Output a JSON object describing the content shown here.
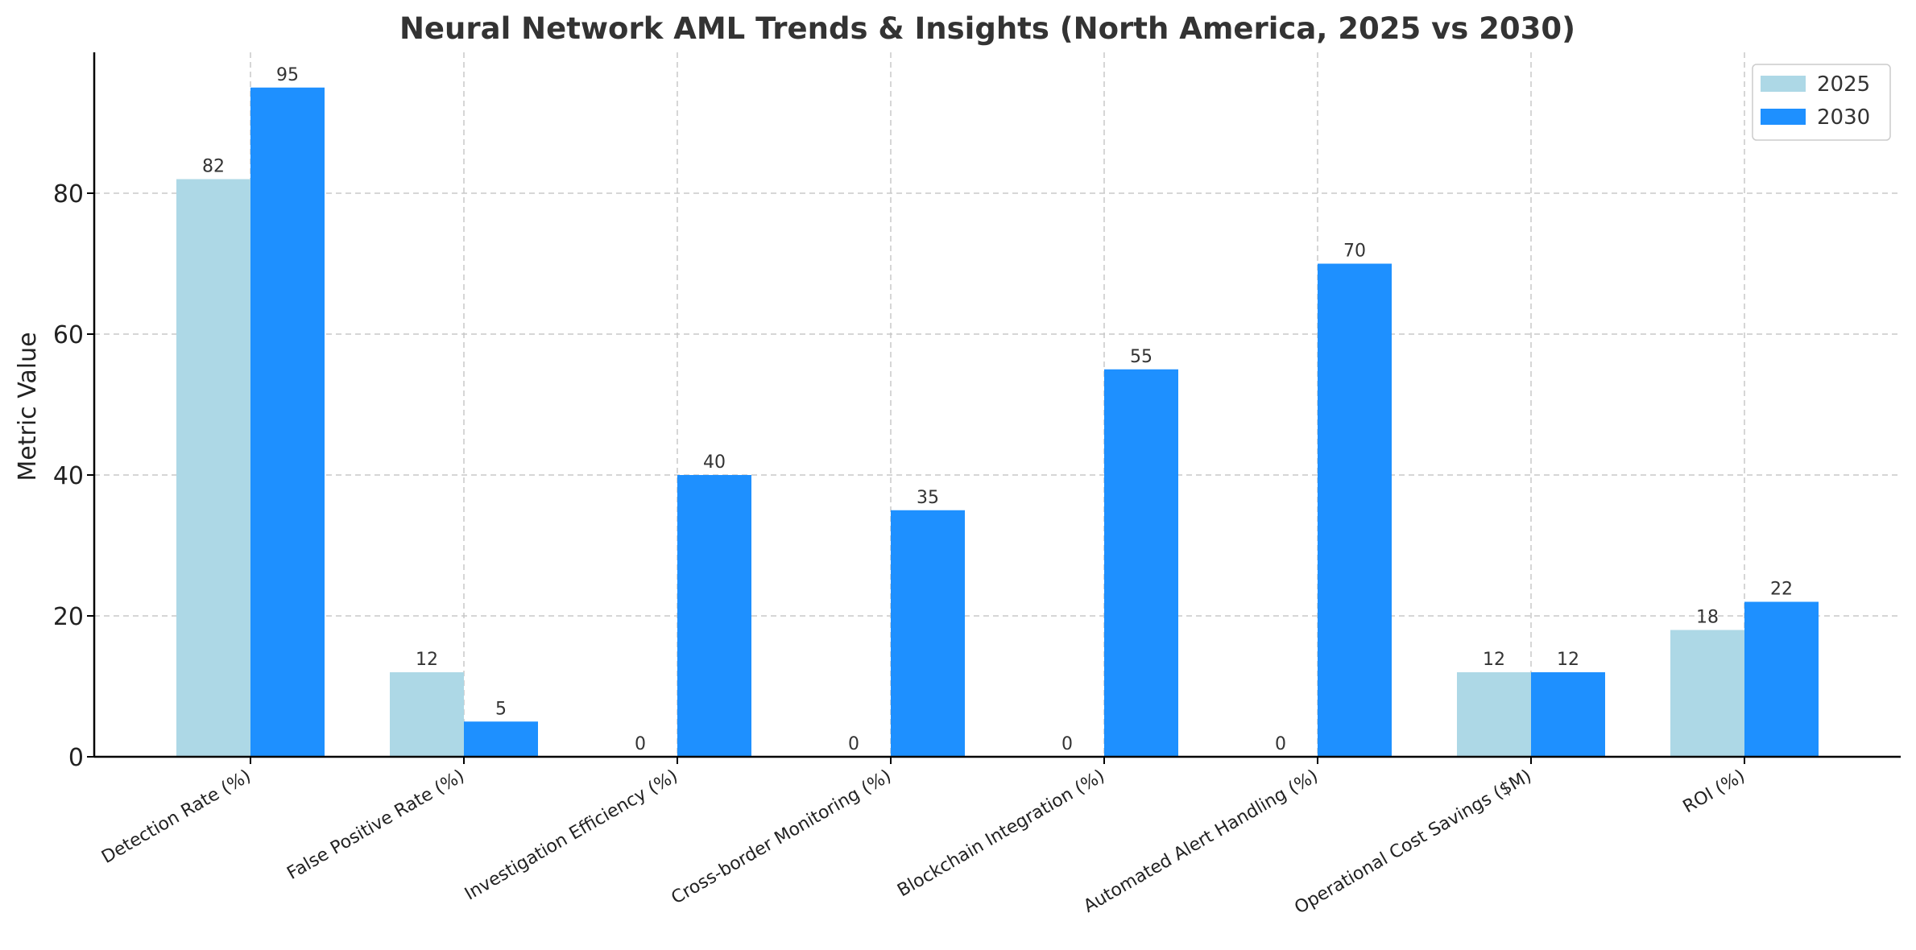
{
  "chart_data": {
    "type": "bar",
    "title": "Neural Network AML Trends & Insights (North America, 2025 vs 2030)",
    "xlabel": "",
    "ylabel": "Metric Value",
    "ylim": [
      0,
      100
    ],
    "yticks": [
      0,
      20,
      40,
      60,
      80
    ],
    "grid": true,
    "legend_position": "top-right",
    "categories": [
      "Detection Rate (%)",
      "False Positive Rate (%)",
      "Investigation Efficiency (%)",
      "Cross-border Monitoring (%)",
      "Blockchain Integration (%)",
      "Automated Alert Handling (%)",
      "Operational Cost Savings ($M)",
      "ROI (%)"
    ],
    "series": [
      {
        "name": "2025",
        "color": "#add8e6",
        "values": [
          82,
          12,
          0,
          0,
          0,
          0,
          12,
          18
        ]
      },
      {
        "name": "2030",
        "color": "#1e90ff",
        "values": [
          95,
          5,
          40,
          35,
          55,
          70,
          12,
          22
        ]
      }
    ]
  }
}
